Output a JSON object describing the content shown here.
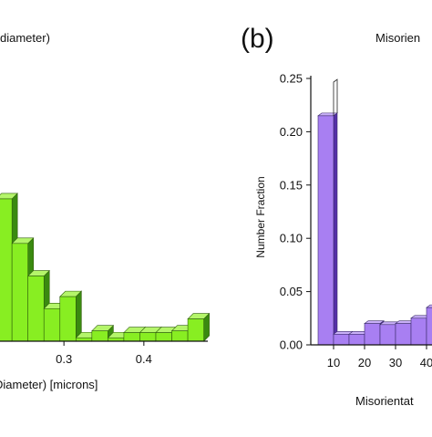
{
  "chart_data": [
    {
      "type": "bar",
      "panel_label": "",
      "title": "diameter)",
      "xlabel": "Diameter) [microns]",
      "ylabel": "",
      "x_ticks": [
        0.3,
        0.4
      ],
      "xlim": [
        0.22,
        0.48
      ],
      "ylim": [
        0,
        1
      ],
      "bar_width": 0.02,
      "x": [
        0.225,
        0.245,
        0.265,
        0.285,
        0.305,
        0.325,
        0.345,
        0.365,
        0.385,
        0.405,
        0.425,
        0.445,
        0.465
      ],
      "values": [
        0.83,
        0.57,
        0.38,
        0.19,
        0.26,
        0.02,
        0.06,
        0.02,
        0.05,
        0.05,
        0.05,
        0.06,
        0.13
      ],
      "value_scale": "relative (no y axis printed)",
      "colors": {
        "front": "#88ee22",
        "side": "#3a8a10",
        "top": "#b4f56a",
        "edge": "#2f5f0a"
      }
    },
    {
      "type": "bar",
      "panel_label": "(b)",
      "title": "Misorien",
      "xlabel": "Misorientat",
      "ylabel": "Number Fraction",
      "x_ticks": [
        10,
        20,
        30,
        40
      ],
      "x_tick_labels": [
        "10",
        "20",
        "30",
        "40"
      ],
      "y_ticks": [
        0,
        0.05,
        0.1,
        0.15,
        0.2,
        0.25
      ],
      "y_tick_labels": [
        "0.00",
        "0.05",
        "0.10",
        "0.15",
        "0.20",
        "0.25"
      ],
      "xlim": [
        0,
        45
      ],
      "ylim": [
        0,
        0.25
      ],
      "bar_width": 5,
      "x": [
        7.5,
        12.5,
        17.5,
        22.5,
        27.5,
        32.5,
        37.5,
        42.5
      ],
      "values": [
        0.215,
        0.01,
        0.01,
        0.02,
        0.019,
        0.02,
        0.025,
        0.035
      ],
      "colors": {
        "front": "#a87ff2",
        "side": "#5530a8",
        "top": "#c9b0f8",
        "edge": "#3a2a6a"
      }
    }
  ]
}
